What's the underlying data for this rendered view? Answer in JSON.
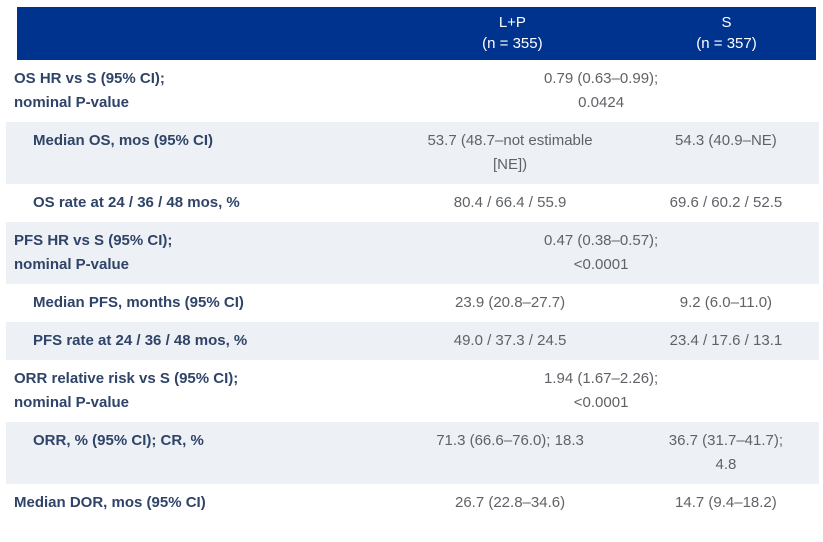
{
  "colors": {
    "header_bg": "#00338d",
    "header_text": "#ffffff",
    "label_text": "#2f4468",
    "value_text": "#5f6266",
    "shaded_row_bg": "#edf0f4",
    "plain_row_bg": "#ffffff"
  },
  "header": {
    "col_lp": {
      "name": "L+P",
      "n": "(n = 355)"
    },
    "col_s": {
      "name": "S",
      "n": "(n = 357)"
    }
  },
  "rows": [
    {
      "label1": "OS HR vs S (95% CI);",
      "label2": "nominal P-value",
      "value1": "0.79 (0.63–0.99);",
      "value2": "0.0424"
    },
    {
      "label1": "Median OS, mos (95% CI)",
      "lp1": "53.7 (48.7–not estimable",
      "lp2": "[NE])",
      "s1": "54.3 (40.9–NE)"
    },
    {
      "label1": "OS rate at 24 / 36 / 48 mos, %",
      "lp1": "80.4 / 66.4 / 55.9",
      "s1": "69.6 / 60.2 / 52.5"
    },
    {
      "label1": "PFS HR vs S (95% CI);",
      "label2": "nominal P-value",
      "value1": "0.47 (0.38–0.57);",
      "value2": "<0.0001"
    },
    {
      "label1": "Median PFS, months (95% CI)",
      "lp1": "23.9 (20.8–27.7)",
      "s1": "9.2 (6.0–11.0)"
    },
    {
      "label1": "PFS rate at 24 / 36 / 48 mos, %",
      "lp1": "49.0 / 37.3 / 24.5",
      "s1": "23.4 / 17.6 / 13.1"
    },
    {
      "label1": "ORR relative risk vs S (95% CI);",
      "label2": "nominal P-value",
      "value1": "1.94 (1.67–2.26);",
      "value2": "<0.0001"
    },
    {
      "label1": "ORR, % (95% CI); CR, %",
      "lp1": "71.3 (66.6–76.0); 18.3",
      "s1": "36.7 (31.7–41.7);",
      "s2": "4.8"
    },
    {
      "label1": "Median DOR, mos (95% CI)",
      "lp1": "26.7 (22.8–34.6)",
      "s1": "14.7 (9.4–18.2)"
    }
  ]
}
